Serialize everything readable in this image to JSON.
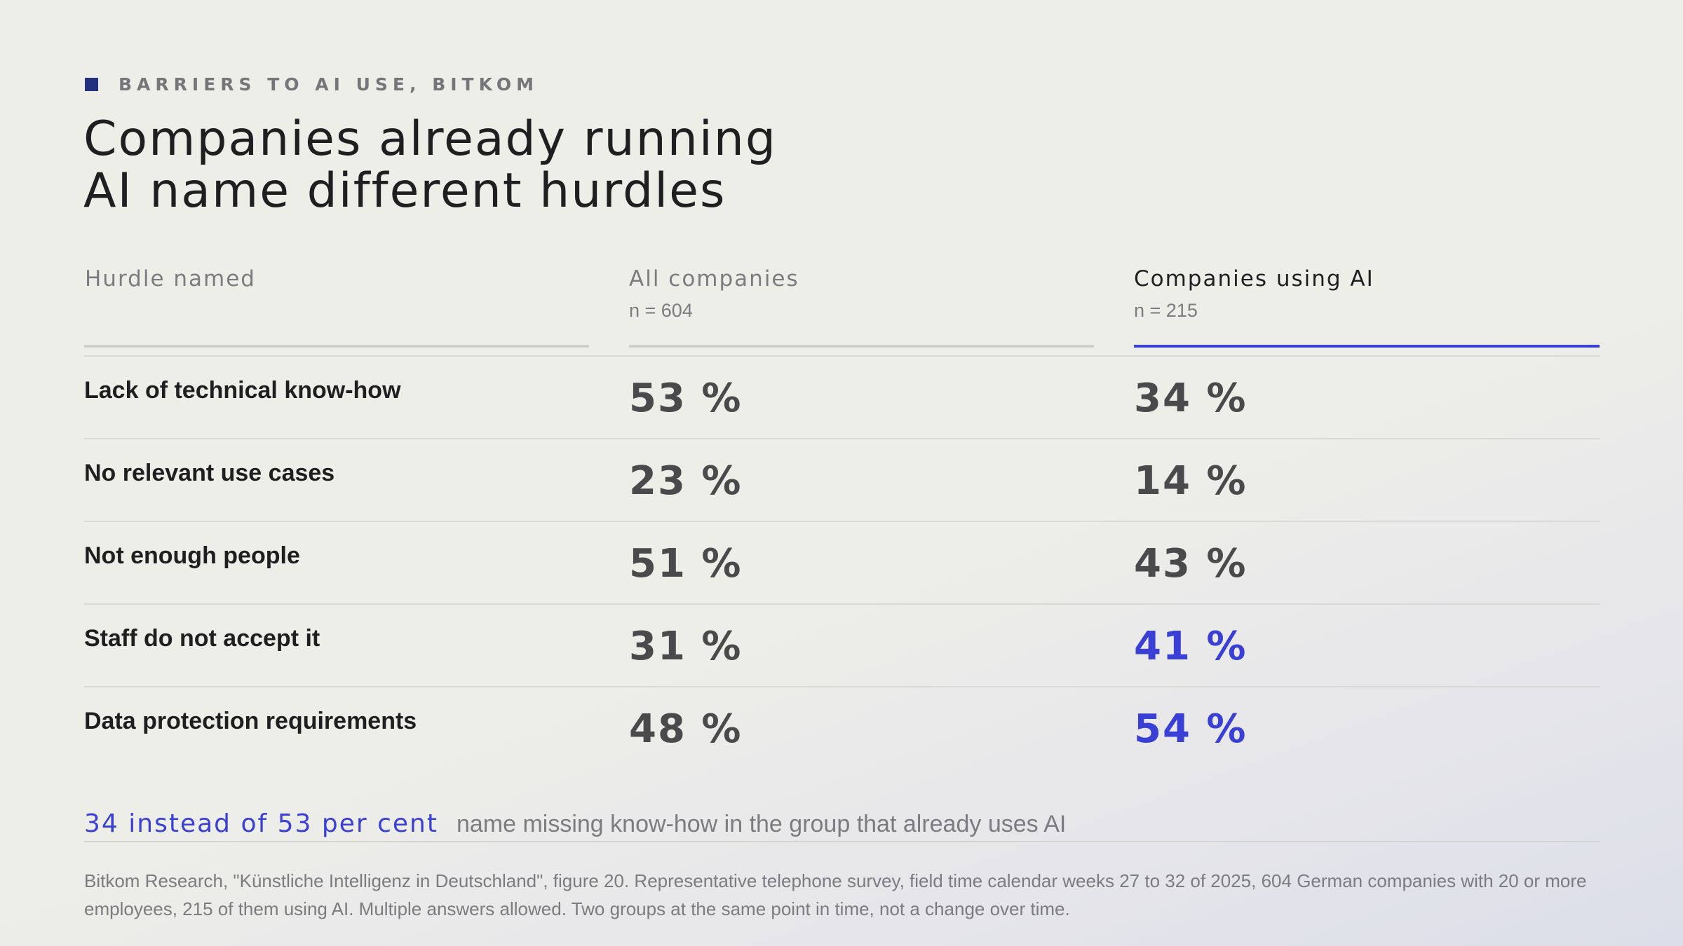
{
  "eyebrow": "BARRIERS TO AI USE, BITKOM",
  "title_line1": "Companies already running",
  "title_line2": "AI name different hurdles",
  "columns": {
    "hurdle": {
      "label": "Hurdle named"
    },
    "all": {
      "label": "All companies",
      "n": "n = 604"
    },
    "ai": {
      "label": "Companies using AI",
      "n": "n = 215"
    }
  },
  "accent_color": "#3a3fd6",
  "chart_data": {
    "type": "table",
    "columns": [
      "Hurdle named",
      "All companies",
      "Companies using AI"
    ],
    "rows": [
      {
        "hurdle": "Lack of technical know-how",
        "all": "53 %",
        "ai": "34 %",
        "ai_highlight": false
      },
      {
        "hurdle": "No relevant use cases",
        "all": "23 %",
        "ai": "14 %",
        "ai_highlight": false
      },
      {
        "hurdle": "Not enough people",
        "all": "51 %",
        "ai": "43 %",
        "ai_highlight": false
      },
      {
        "hurdle": "Staff do not accept it",
        "all": "31 %",
        "ai": "41 %",
        "ai_highlight": true
      },
      {
        "hurdle": "Data protection requirements",
        "all": "48 %",
        "ai": "54 %",
        "ai_highlight": true
      }
    ]
  },
  "callout": {
    "strong": "34 instead of 53 per cent",
    "rest": "name missing know-how in the group that already uses AI"
  },
  "source": "Bitkom Research, \"Künstliche Intelligenz in Deutschland\", figure 20. Representative telephone survey, field time calendar weeks 27 to 32 of 2025, 604 German companies with 20 or more employees, 215 of them using AI. Multiple answers allowed. Two groups at the same point in time, not a change over time."
}
